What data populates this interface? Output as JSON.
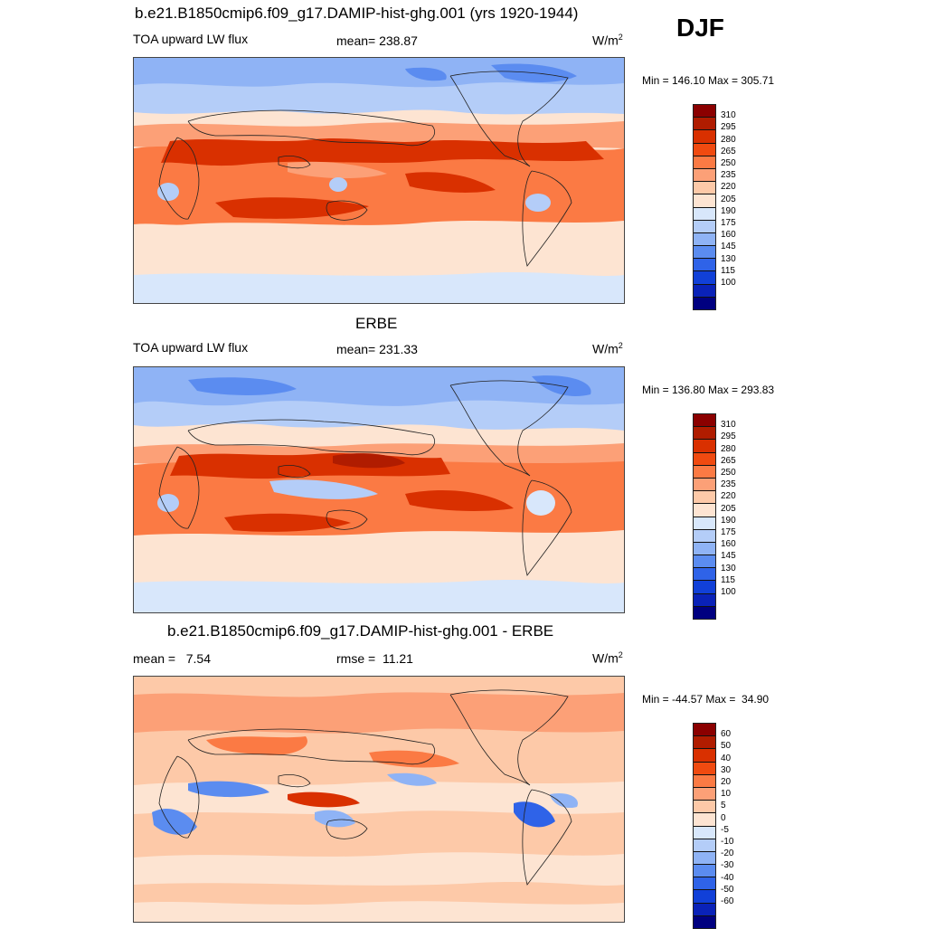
{
  "header": {
    "run_title": "b.e21.B1850cmip6.f09_g17.DAMIP-hist-ghg.001 (yrs 1920-1944)",
    "season": "DJF"
  },
  "panels": [
    {
      "title": "",
      "left_label": "TOA upward LW flux",
      "center_label": "mean= 238.87",
      "units": "W/m",
      "units_sup": "2",
      "minmax": "Min = 146.10 Max = 305.71",
      "colorbar_key": "lw"
    },
    {
      "title": "ERBE",
      "left_label": "TOA upward LW flux",
      "center_label": "mean= 231.33",
      "units": "W/m",
      "units_sup": "2",
      "minmax": "Min = 136.80 Max = 293.83",
      "colorbar_key": "lw"
    },
    {
      "title": "b.e21.B1850cmip6.f09_g17.DAMIP-hist-ghg.001 - ERBE",
      "left_label": "mean =   7.54",
      "center_label": "rmse =  11.21",
      "units": "W/m",
      "units_sup": "2",
      "minmax": "Min = -44.57 Max =  34.90",
      "colorbar_key": "diff"
    }
  ],
  "colorbars": {
    "lw": {
      "labels": [
        "310",
        "295",
        "280",
        "265",
        "250",
        "235",
        "220",
        "205",
        "190",
        "175",
        "160",
        "145",
        "130",
        "115",
        "100"
      ],
      "colors": [
        "#8b0000",
        "#b01c00",
        "#d93000",
        "#f04a10",
        "#fb7a44",
        "#fca077",
        "#fdc9a8",
        "#fde4d2",
        "#d8e7fb",
        "#b4cdf8",
        "#8fb3f5",
        "#5b8cf0",
        "#2f63e8",
        "#1140d8",
        "#0a22b8",
        "#000080"
      ]
    },
    "diff": {
      "labels": [
        "60",
        "50",
        "40",
        "30",
        "20",
        "10",
        "5",
        "0",
        "-5",
        "-10",
        "-20",
        "-30",
        "-40",
        "-50",
        "-60"
      ],
      "colors": [
        "#8b0000",
        "#b01c00",
        "#d93000",
        "#f04a10",
        "#fb7a44",
        "#fca077",
        "#fdc9a8",
        "#fde4d2",
        "#d8e7fb",
        "#b4cdf8",
        "#8fb3f5",
        "#5b8cf0",
        "#2f63e8",
        "#1140d8",
        "#0a22b8",
        "#000080"
      ]
    }
  }
}
